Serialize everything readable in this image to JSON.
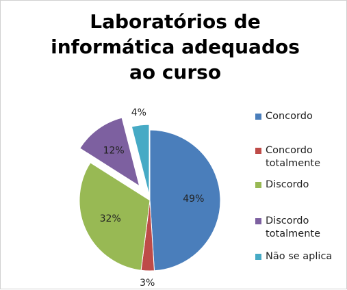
{
  "chart_data": {
    "type": "pie",
    "title": "Laboratórios de informática adequados ao curso",
    "categories": [
      "Concordo",
      "Concordo totalmente",
      "Discordo",
      "Discordo totalmente",
      "Não se aplica"
    ],
    "values": [
      49,
      3,
      32,
      12,
      4
    ],
    "value_labels": [
      "49%",
      "3%",
      "32%",
      "12%",
      "4%"
    ],
    "colors": [
      "#4a7ebb",
      "#be4b48",
      "#98b954",
      "#7d60a0",
      "#46aac5"
    ],
    "legend": "right"
  }
}
